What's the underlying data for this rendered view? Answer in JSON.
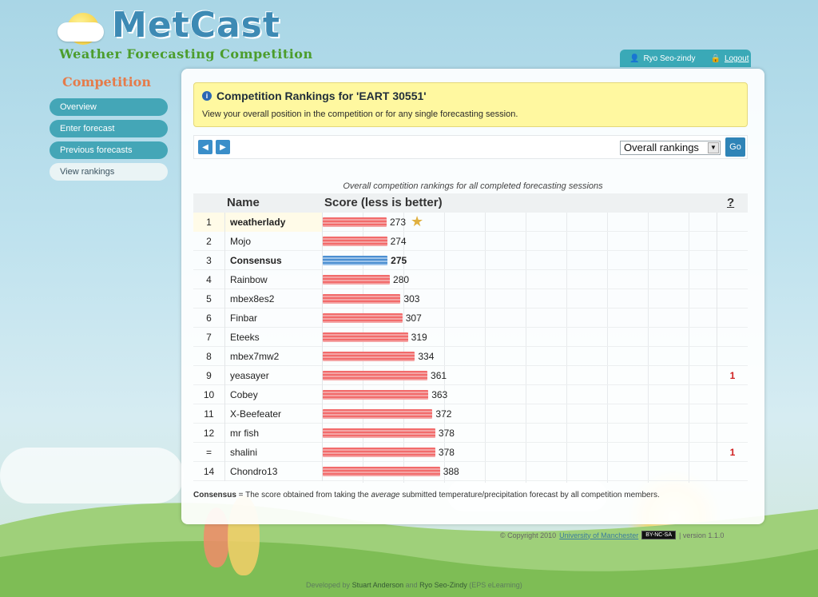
{
  "header": {
    "logo_title": "MetCast",
    "logo_subtitle": "Weather Forecasting Competition"
  },
  "user": {
    "name": "Ryo Seo-zindy",
    "logout_label": "Logout"
  },
  "sidebar": {
    "title": "Competition",
    "items": [
      {
        "label": "Overview",
        "active": false
      },
      {
        "label": "Enter forecast",
        "active": false
      },
      {
        "label": "Previous forecasts",
        "active": false
      },
      {
        "label": "View rankings",
        "active": true
      }
    ]
  },
  "notice": {
    "title": "Competition Rankings for 'EART 30551'",
    "text": "View your overall position in the competition or for any single forecasting session."
  },
  "toolbar": {
    "prev_label": "◀",
    "next_label": "▶",
    "select_value": "Overall rankings",
    "go_label": "Go"
  },
  "table": {
    "caption": "Overall competition rankings for all completed forecasting sessions",
    "col_name": "Name",
    "col_score": "Score (less is better)",
    "col_help": "?",
    "rows": [
      {
        "rank": "1",
        "name": "weatherlady",
        "score": 273,
        "bold": true,
        "star": true,
        "flag": ""
      },
      {
        "rank": "2",
        "name": "Mojo",
        "score": 274,
        "bold": false,
        "star": false,
        "flag": ""
      },
      {
        "rank": "3",
        "name": "Consensus",
        "score": 275,
        "bold": true,
        "consensus": true,
        "star": false,
        "flag": ""
      },
      {
        "rank": "4",
        "name": "Rainbow",
        "score": 280,
        "bold": false,
        "star": false,
        "flag": ""
      },
      {
        "rank": "5",
        "name": "mbex8es2",
        "score": 303,
        "bold": false,
        "star": false,
        "flag": ""
      },
      {
        "rank": "6",
        "name": "Finbar",
        "score": 307,
        "bold": false,
        "star": false,
        "flag": ""
      },
      {
        "rank": "7",
        "name": "Eteeks",
        "score": 319,
        "bold": false,
        "star": false,
        "flag": ""
      },
      {
        "rank": "8",
        "name": "mbex7mw2",
        "score": 334,
        "bold": false,
        "star": false,
        "flag": ""
      },
      {
        "rank": "9",
        "name": "yeasayer",
        "score": 361,
        "bold": false,
        "star": false,
        "flag": "1"
      },
      {
        "rank": "10",
        "name": "Cobey",
        "score": 363,
        "bold": false,
        "star": false,
        "flag": ""
      },
      {
        "rank": "11",
        "name": "X-Beefeater",
        "score": 372,
        "bold": false,
        "star": false,
        "flag": ""
      },
      {
        "rank": "12",
        "name": "mr fish",
        "score": 378,
        "bold": false,
        "star": false,
        "flag": ""
      },
      {
        "rank": "=",
        "name": "shalini",
        "score": 378,
        "bold": false,
        "star": false,
        "flag": "1"
      },
      {
        "rank": "14",
        "name": "Chondro13",
        "score": 388,
        "bold": false,
        "star": false,
        "flag": ""
      }
    ]
  },
  "footnote": {
    "term": "Consensus",
    "text_before": " = The score obtained from taking the ",
    "emphasis": "average",
    "text_after": " submitted temperature/precipitation forecast by all competition members."
  },
  "footer": {
    "copyright": "© Copyright 2010",
    "org_link": "University of Manchester",
    "license": "BY-NC-SA",
    "version": "| version 1.1.0",
    "credits_prefix": "Developed by",
    "dev1": "Stuart Anderson",
    "and": "and",
    "dev2": "Ryo Seo-Zindy",
    "credits_suffix": "(EPS eLearning)"
  },
  "colors": {
    "accent": "#3aa9b7",
    "notice_bg": "#fff8a0",
    "bar_red": "#f26b6b",
    "bar_blue": "#4c8fd1",
    "flag_red": "#d02020"
  }
}
